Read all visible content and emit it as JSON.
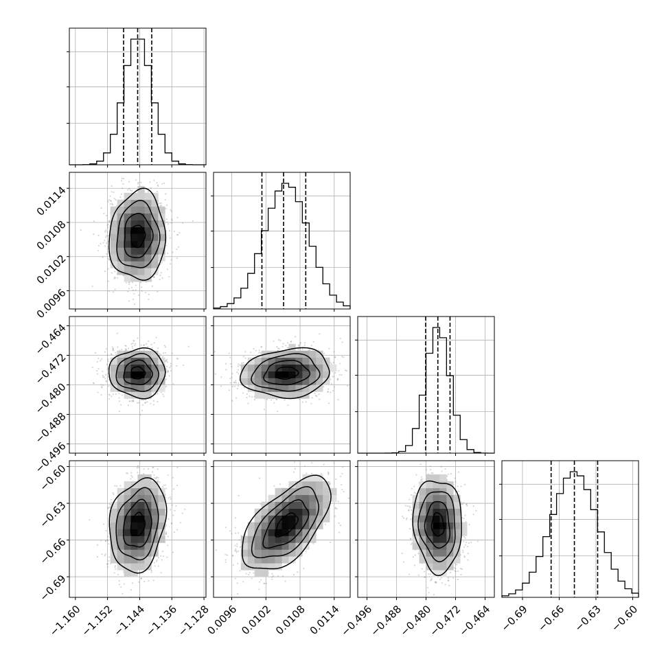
{
  "chart_data": {
    "type": "corner",
    "grid": true,
    "parameters": [
      {
        "name": "",
        "range": [
          -1.1615,
          -1.1275
        ],
        "ticks": [
          -1.16,
          -1.152,
          -1.144,
          -1.136,
          -1.128
        ],
        "tick_labels": [
          "−1.160",
          "−1.152",
          "−1.144",
          "−1.136",
          "−1.128"
        ],
        "quantiles": [
          -1.148,
          -1.1445,
          -1.141
        ],
        "mean": -1.1445,
        "sigma": 0.0035,
        "hist_peak": 1.0
      },
      {
        "name": "",
        "range": [
          0.00928,
          0.01168
        ],
        "ticks": [
          0.0096,
          0.0102,
          0.0108,
          0.0114
        ],
        "tick_labels": [
          "0.0096",
          "0.0102",
          "0.0108",
          "0.0114"
        ],
        "quantiles": [
          0.01013,
          0.01051,
          0.0109
        ],
        "mean": 0.01056,
        "sigma": 0.00039,
        "hist_peak": 1.0
      },
      {
        "name": "",
        "range": [
          -0.4985,
          -0.4615
        ],
        "ticks": [
          -0.496,
          -0.488,
          -0.48,
          -0.472,
          -0.464
        ],
        "tick_labels": [
          "−0.496",
          "−0.488",
          "−0.480",
          "−0.472",
          "−0.464"
        ],
        "quantiles": [
          -0.4801,
          -0.4768,
          -0.4735
        ],
        "mean": -0.4768,
        "sigma": 0.0033,
        "hist_peak": 1.0
      },
      {
        "name": "",
        "range": [
          -0.7068,
          -0.5952
        ],
        "ticks": [
          -0.69,
          -0.66,
          -0.63,
          -0.6
        ],
        "tick_labels": [
          "−0.69",
          "−0.66",
          "−0.63",
          "−0.60"
        ],
        "quantiles": [
          -0.6666,
          -0.6476,
          -0.6286
        ],
        "mean": -0.6476,
        "sigma": 0.019,
        "hist_peak": 1.0
      }
    ],
    "correlations": [
      {
        "row": 1,
        "col": 0,
        "rho": 0.05
      },
      {
        "row": 2,
        "col": 0,
        "rho": 0.0
      },
      {
        "row": 2,
        "col": 1,
        "rho": 0.12
      },
      {
        "row": 3,
        "col": 0,
        "rho": 0.2
      },
      {
        "row": 3,
        "col": 1,
        "rho": 0.6
      },
      {
        "row": 3,
        "col": 2,
        "rho": -0.08
      }
    ],
    "contour_levels_sigma": [
      0.5,
      1.0,
      1.5,
      2.0
    ],
    "colors": {
      "line": "#000000",
      "grid": "#b0b0b0",
      "scatter": "#888888",
      "density_dark": "#000000",
      "density_light": "#ffffff"
    }
  }
}
